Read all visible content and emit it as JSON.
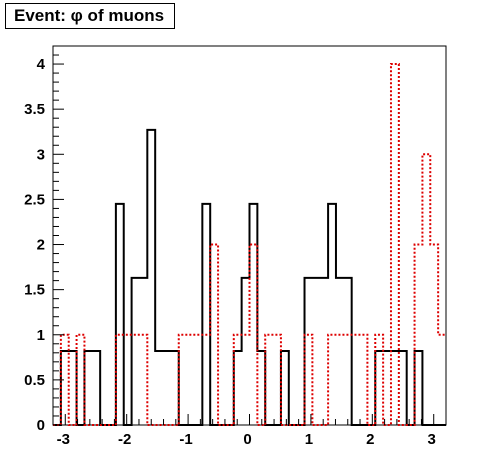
{
  "chart_data": {
    "type": "histogram",
    "title": "Event: φ of muons",
    "xlim": [
      -3.2,
      3.2
    ],
    "ylim": [
      0,
      4.2
    ],
    "bin_width": 0.128,
    "x_ticks": [
      "-3",
      "-2",
      "-1",
      "0",
      "1",
      "2",
      "3"
    ],
    "y_ticks": [
      "0",
      "0.5",
      "1",
      "1.5",
      "2",
      "2.5",
      "3",
      "3.5",
      "4"
    ],
    "grid": false,
    "legend": "none",
    "series": [
      {
        "color": "#000000",
        "style": "solid",
        "bins": [
          [
            -3.2,
            0.0
          ],
          [
            -3.072,
            0.82
          ],
          [
            -2.944,
            0.82
          ],
          [
            -2.816,
            0.0
          ],
          [
            -2.688,
            0.82
          ],
          [
            -2.56,
            0.82
          ],
          [
            -2.432,
            0.0
          ],
          [
            -2.304,
            0.0
          ],
          [
            -2.176,
            2.45
          ],
          [
            -2.048,
            0.0
          ],
          [
            -1.92,
            1.63
          ],
          [
            -1.792,
            1.63
          ],
          [
            -1.664,
            3.27
          ],
          [
            -1.536,
            0.82
          ],
          [
            -1.408,
            0.82
          ],
          [
            -1.28,
            0.82
          ],
          [
            -1.152,
            0.0
          ],
          [
            -1.024,
            0.0
          ],
          [
            -0.896,
            0.0
          ],
          [
            -0.768,
            2.45
          ],
          [
            -0.64,
            0.0
          ],
          [
            -0.512,
            0.0
          ],
          [
            -0.384,
            0.0
          ],
          [
            -0.256,
            0.82
          ],
          [
            -0.128,
            1.63
          ],
          [
            0.0,
            2.45
          ],
          [
            0.128,
            0.82
          ],
          [
            0.256,
            0.0
          ],
          [
            0.384,
            0.0
          ],
          [
            0.512,
            0.82
          ],
          [
            0.64,
            0.0
          ],
          [
            0.768,
            0.0
          ],
          [
            0.896,
            1.63
          ],
          [
            1.024,
            1.63
          ],
          [
            1.152,
            1.63
          ],
          [
            1.28,
            2.45
          ],
          [
            1.408,
            1.63
          ],
          [
            1.536,
            1.63
          ],
          [
            1.664,
            0.0
          ],
          [
            1.792,
            0.0
          ],
          [
            1.92,
            0.0
          ],
          [
            2.048,
            0.82
          ],
          [
            2.176,
            0.82
          ],
          [
            2.304,
            0.82
          ],
          [
            2.432,
            0.82
          ],
          [
            2.56,
            0.0
          ],
          [
            2.688,
            0.82
          ],
          [
            2.816,
            0.0
          ],
          [
            2.944,
            0.0
          ],
          [
            3.072,
            0.0
          ]
        ]
      },
      {
        "color": "#dd0000",
        "style": "dotted",
        "bins": [
          [
            -3.2,
            0.0
          ],
          [
            -3.072,
            1.0
          ],
          [
            -2.944,
            0.0
          ],
          [
            -2.816,
            1.0
          ],
          [
            -2.688,
            0.0
          ],
          [
            -2.56,
            0.0
          ],
          [
            -2.432,
            0.0
          ],
          [
            -2.304,
            0.0
          ],
          [
            -2.176,
            1.0
          ],
          [
            -2.048,
            1.0
          ],
          [
            -1.92,
            1.0
          ],
          [
            -1.792,
            1.0
          ],
          [
            -1.664,
            0.0
          ],
          [
            -1.536,
            0.0
          ],
          [
            -1.408,
            0.0
          ],
          [
            -1.28,
            0.0
          ],
          [
            -1.152,
            1.0
          ],
          [
            -1.024,
            1.0
          ],
          [
            -0.896,
            1.0
          ],
          [
            -0.768,
            1.0
          ],
          [
            -0.64,
            2.0
          ],
          [
            -0.512,
            0.0
          ],
          [
            -0.384,
            0.0
          ],
          [
            -0.256,
            1.0
          ],
          [
            -0.128,
            1.0
          ],
          [
            0.0,
            2.0
          ],
          [
            0.128,
            0.0
          ],
          [
            0.256,
            1.0
          ],
          [
            0.384,
            1.0
          ],
          [
            0.512,
            0.0
          ],
          [
            0.64,
            0.0
          ],
          [
            0.768,
            0.0
          ],
          [
            0.896,
            1.0
          ],
          [
            1.024,
            0.0
          ],
          [
            1.152,
            0.0
          ],
          [
            1.28,
            1.0
          ],
          [
            1.408,
            1.0
          ],
          [
            1.536,
            1.0
          ],
          [
            1.664,
            1.0
          ],
          [
            1.792,
            1.0
          ],
          [
            1.92,
            0.0
          ],
          [
            2.048,
            1.0
          ],
          [
            2.176,
            0.0
          ],
          [
            2.304,
            4.0
          ],
          [
            2.432,
            0.0
          ],
          [
            2.56,
            0.0
          ],
          [
            2.688,
            2.0
          ],
          [
            2.816,
            3.0
          ],
          [
            2.944,
            2.0
          ],
          [
            3.072,
            1.0
          ]
        ]
      }
    ]
  }
}
